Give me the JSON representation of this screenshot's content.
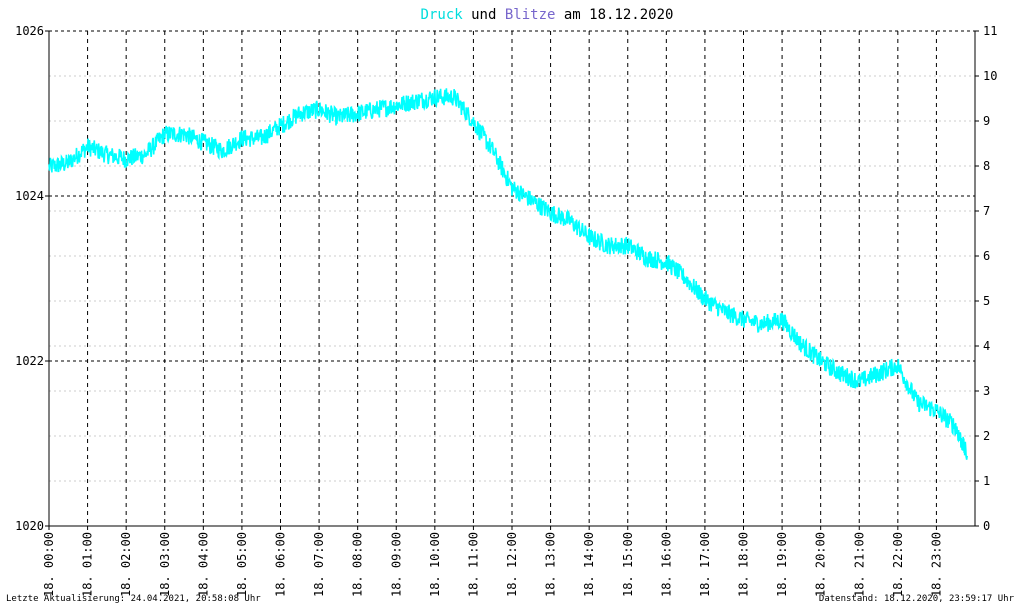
{
  "title": {
    "part1": "Druck",
    "part2": " und ",
    "part3": "Blitze",
    "part4": " am 18.12.2020",
    "color1": "#00dddd",
    "color2": "#000000",
    "color3": "#7766cc",
    "color4": "#000000"
  },
  "footer": {
    "left": "Letzte Aktualisierung: 24.04.2021, 20:58:08 Uhr",
    "right": "Datenstand: 18.12.2020, 23:59:17 Uhr"
  },
  "chart_data": {
    "type": "line",
    "title": "Druck und Blitze am 18.12.2020",
    "xlabel": "",
    "ylabel": "",
    "x_tick_labels": [
      "18. 00:00",
      "18. 01:00",
      "18. 02:00",
      "18. 03:00",
      "18. 04:00",
      "18. 05:00",
      "18. 06:00",
      "18. 07:00",
      "18. 08:00",
      "18. 09:00",
      "18. 10:00",
      "18. 11:00",
      "18. 12:00",
      "18. 13:00",
      "18. 14:00",
      "18. 15:00",
      "18. 16:00",
      "18. 17:00",
      "18. 18:00",
      "18. 19:00",
      "18. 20:00",
      "18. 21:00",
      "18. 22:00",
      "18. 23:00"
    ],
    "xlim": [
      0,
      24
    ],
    "ylim_left": [
      1020,
      1026
    ],
    "y_left_ticks": [
      1020,
      1022,
      1024,
      1026
    ],
    "ylim_right": [
      0,
      11
    ],
    "y_right_ticks": [
      0,
      1,
      2,
      3,
      4,
      5,
      6,
      7,
      8,
      9,
      10,
      11
    ],
    "grid": true,
    "series": [
      {
        "name": "Druck",
        "color": "#00ffff",
        "x": [
          0,
          0.5,
          1,
          1.5,
          2,
          2.5,
          3,
          3.5,
          4,
          4.5,
          5,
          5.5,
          6,
          6.5,
          7,
          7.5,
          8,
          8.5,
          9,
          9.5,
          10,
          10.5,
          11,
          11.5,
          12,
          12.5,
          13,
          13.5,
          14,
          14.5,
          15,
          15.5,
          16,
          16.5,
          17,
          17.5,
          18,
          18.5,
          19,
          19.5,
          20,
          20.5,
          21,
          21.5,
          22,
          22.5,
          23,
          23.5,
          23.8
        ],
        "values": [
          1024.35,
          1024.4,
          1024.6,
          1024.5,
          1024.45,
          1024.5,
          1024.75,
          1024.75,
          1024.65,
          1024.55,
          1024.7,
          1024.7,
          1024.85,
          1025.0,
          1025.05,
          1024.95,
          1025.0,
          1025.05,
          1025.1,
          1025.15,
          1025.2,
          1025.2,
          1024.9,
          1024.55,
          1024.1,
          1023.95,
          1023.8,
          1023.7,
          1023.5,
          1023.4,
          1023.4,
          1023.25,
          1023.2,
          1023.0,
          1022.75,
          1022.6,
          1022.5,
          1022.45,
          1022.5,
          1022.2,
          1022.0,
          1021.85,
          1021.75,
          1021.85,
          1021.95,
          1021.5,
          1021.4,
          1021.2,
          1020.85
        ]
      }
    ]
  }
}
